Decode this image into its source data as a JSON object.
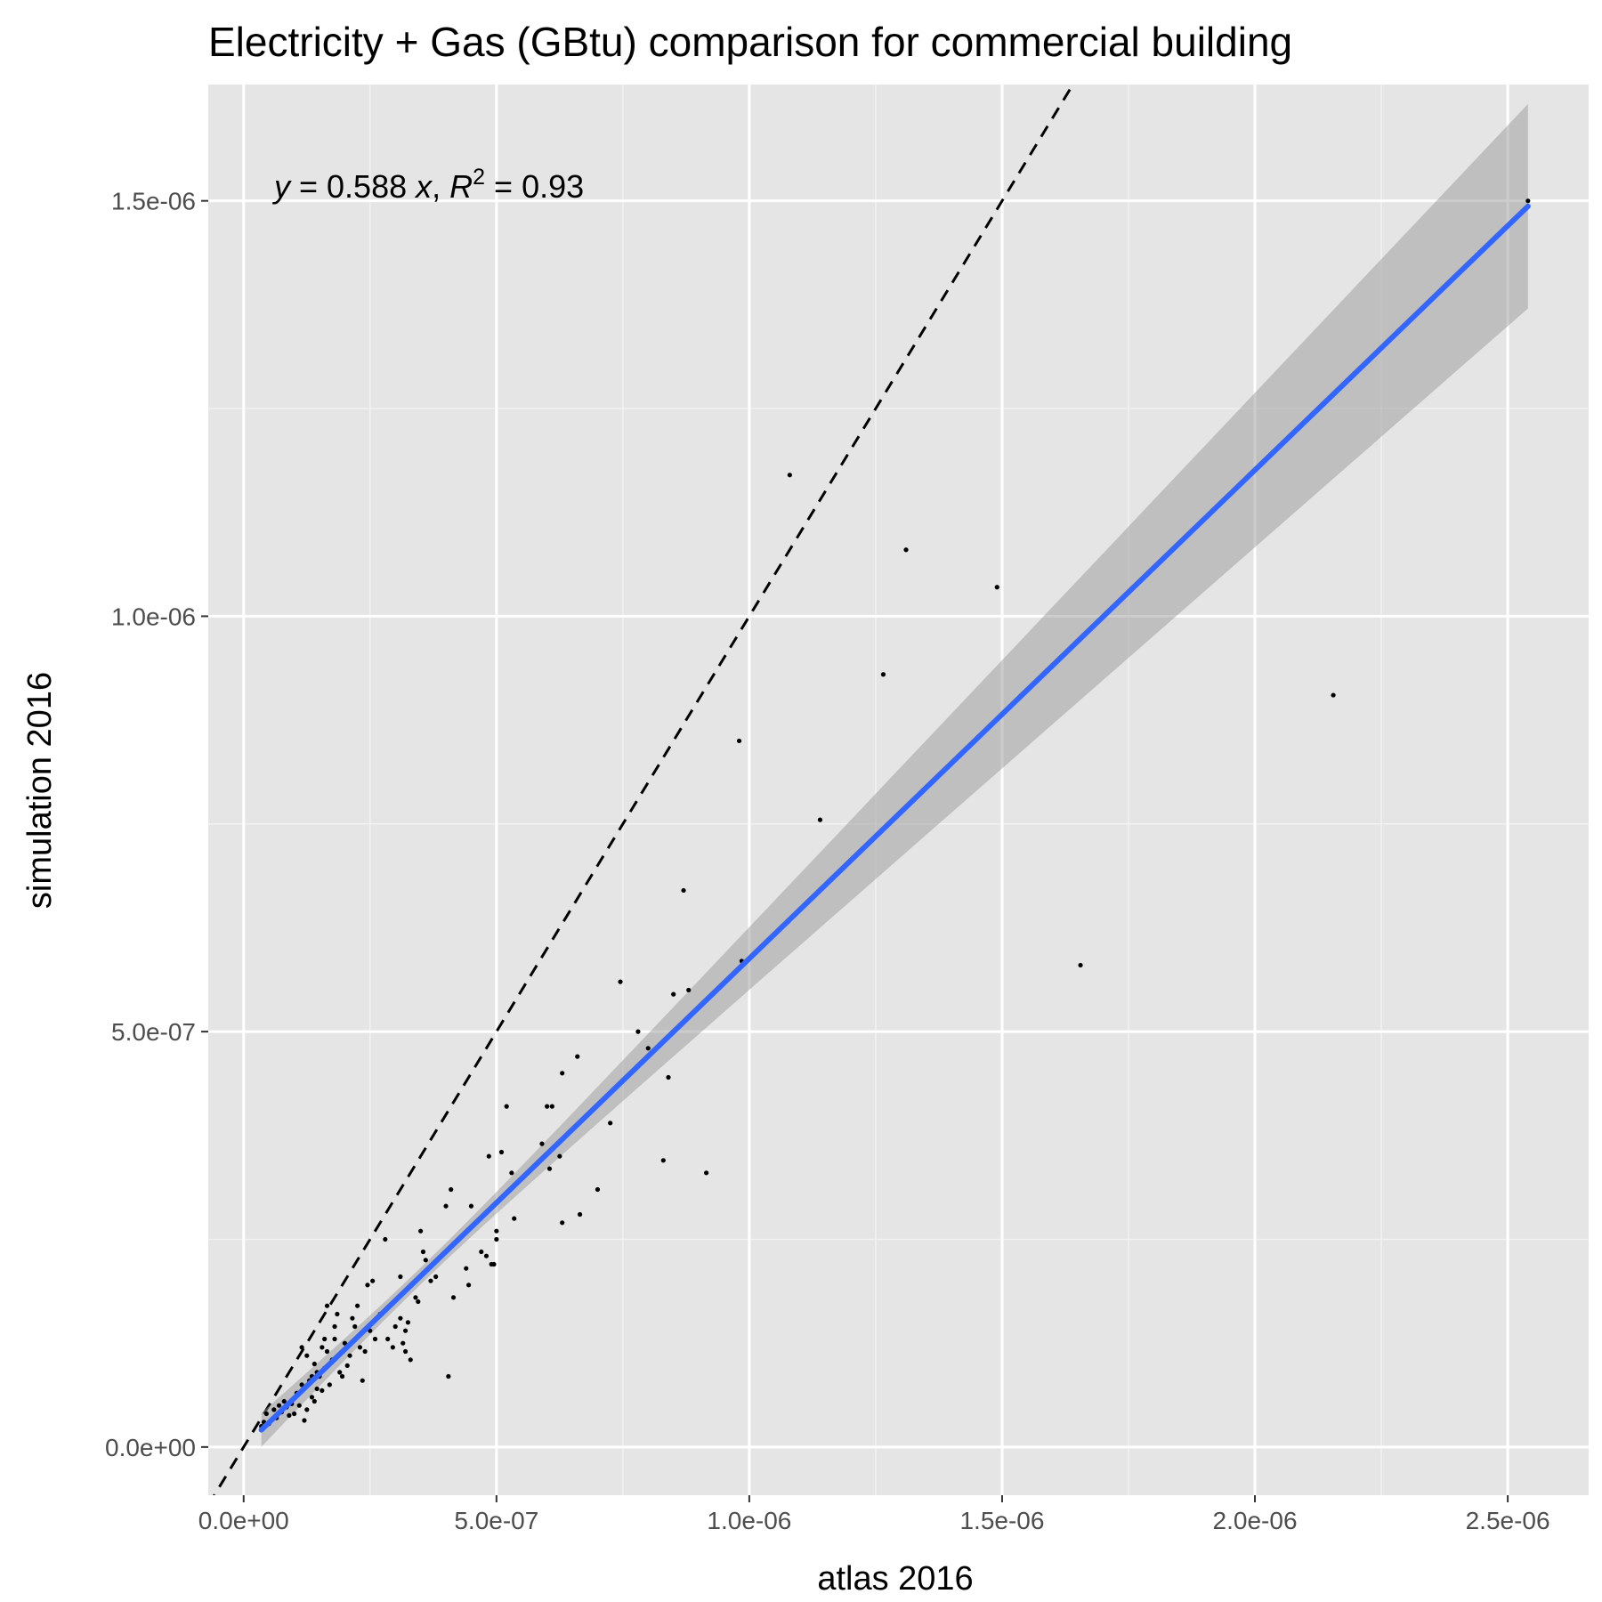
{
  "chart_data": {
    "type": "scatter",
    "title": "Electricity + Gas (GBtu) comparison for commercial building",
    "xlabel": "atlas 2016",
    "ylabel": "simulation 2016",
    "xlim": [
      -7e-08,
      2.66e-06
    ],
    "ylim": [
      -5.8e-08,
      1.64e-06
    ],
    "x_ticks": [
      0,
      5e-07,
      1e-06,
      1.5e-06,
      2e-06,
      2.5e-06
    ],
    "x_tick_labels": [
      "0.0e+00",
      "5.0e-07",
      "1.0e-06",
      "1.5e-06",
      "2.0e-06",
      "2.5e-06"
    ],
    "y_ticks": [
      0,
      5e-07,
      1e-06,
      1.5e-06
    ],
    "y_tick_labels": [
      "0.0e+00",
      "5.0e-07",
      "1.0e-06",
      "1.5e-06"
    ],
    "grid": true,
    "annotation": {
      "y_var": "y",
      "eq_mid": " = 0.588 ",
      "x_var": "x",
      "sep": ", ",
      "r_var": "R",
      "r_exp": "2",
      "r_val": " = 0.93"
    },
    "reference_line": {
      "slope": 1,
      "intercept": 0,
      "style": "dashed",
      "color": "#000000"
    },
    "fit_line": {
      "slope": 0.588,
      "intercept": 0,
      "x_range": [
        3.5e-08,
        2.54e-06
      ],
      "color": "#3366ff",
      "band_color": "#999999"
    },
    "points": [
      [
        3.5e-08,
        2.5e-08
      ],
      [
        4e-08,
        3e-08
      ],
      [
        4.5e-08,
        4e-08
      ],
      [
        5e-08,
        2.8e-08
      ],
      [
        6e-08,
        4.5e-08
      ],
      [
        6.5e-08,
        3.5e-08
      ],
      [
        7e-08,
        5e-08
      ],
      [
        7.5e-08,
        4.2e-08
      ],
      [
        8e-08,
        5.5e-08
      ],
      [
        8.5e-08,
        4.8e-08
      ],
      [
        9e-08,
        3.8e-08
      ],
      [
        9.5e-08,
        5.2e-08
      ],
      [
        1e-07,
        4e-08
      ],
      [
        1.05e-07,
        6.5e-08
      ],
      [
        1.1e-07,
        5e-08
      ],
      [
        1.15e-07,
        7.5e-08
      ],
      [
        1.2e-07,
        3.2e-08
      ],
      [
        1.25e-07,
        4.5e-08
      ],
      [
        1.3e-07,
        8e-08
      ],
      [
        1.35e-07,
        6e-08
      ],
      [
        1.4e-07,
        5.5e-08
      ],
      [
        1.45e-07,
        7e-08
      ],
      [
        1.5e-07,
        8.5e-08
      ],
      [
        1.55e-07,
        6.8e-08
      ],
      [
        1.6e-07,
        9.5e-08
      ],
      [
        1.65e-07,
        1.15e-07
      ],
      [
        1.7e-07,
        7.5e-08
      ],
      [
        1.75e-07,
        1.05e-07
      ],
      [
        1.8e-07,
        1.3e-07
      ],
      [
        1.9e-07,
        9e-08
      ],
      [
        2e-07,
        1.25e-07
      ],
      [
        2.1e-07,
        1.1e-07
      ],
      [
        2.2e-07,
        1.45e-07
      ],
      [
        2.3e-07,
        1.2e-07
      ],
      [
        2.4e-07,
        1.15e-07
      ],
      [
        2.5e-07,
        1.4e-07
      ],
      [
        2.6e-07,
        1.3e-07
      ],
      [
        2.7e-07,
        1.6e-07
      ],
      [
        1.25e-07,
        1.1e-07
      ],
      [
        1.35e-07,
        8.5e-08
      ],
      [
        1.55e-07,
        1.2e-07
      ],
      [
        1.6e-07,
        1.3e-07
      ],
      [
        1.85e-07,
        1.6e-07
      ],
      [
        2.05e-07,
        9.8e-08
      ],
      [
        2.25e-07,
        1.7e-07
      ],
      [
        2.45e-07,
        1.95e-07
      ],
      [
        2.55e-07,
        2e-07
      ],
      [
        1.95e-07,
        8.5e-08
      ],
      [
        2.35e-07,
        8e-08
      ],
      [
        1.15e-07,
        1.2e-07
      ],
      [
        1.4e-07,
        1e-07
      ],
      [
        1.65e-07,
        1.7e-07
      ],
      [
        1.8e-07,
        1.45e-07
      ],
      [
        2.15e-07,
        1.55e-07
      ],
      [
        1.45e-07,
        9e-08
      ],
      [
        2.85e-07,
        1.3e-07
      ],
      [
        2.95e-07,
        1.2e-07
      ],
      [
        3e-07,
        1.45e-07
      ],
      [
        3.1e-07,
        1.55e-07
      ],
      [
        3.1e-07,
        2.05e-07
      ],
      [
        3.15e-07,
        1.25e-07
      ],
      [
        3.2e-07,
        1.4e-07
      ],
      [
        3.25e-07,
        1.5e-07
      ],
      [
        3.3e-07,
        1.05e-07
      ],
      [
        3.4e-07,
        1.8e-07
      ],
      [
        3.45e-07,
        1.75e-07
      ],
      [
        3.5e-07,
        2.6e-07
      ],
      [
        3.55e-07,
        2.35e-07
      ],
      [
        3.6e-07,
        2.25e-07
      ],
      [
        3.7e-07,
        2e-07
      ],
      [
        3.8e-07,
        2.05e-07
      ],
      [
        2.8e-07,
        2.5e-07
      ],
      [
        3.2e-07,
        1.15e-07
      ],
      [
        4.05e-07,
        8.5e-08
      ],
      [
        4e-07,
        2.9e-07
      ],
      [
        4.1e-07,
        3.1e-07
      ],
      [
        4.15e-07,
        1.8e-07
      ],
      [
        4.4e-07,
        2.15e-07
      ],
      [
        4.45e-07,
        1.95e-07
      ],
      [
        4.5e-07,
        2.9e-07
      ],
      [
        4.7e-07,
        2.35e-07
      ],
      [
        4.8e-07,
        2.3e-07
      ],
      [
        4.85e-07,
        3.5e-07
      ],
      [
        4.9e-07,
        2.2e-07
      ],
      [
        4.95e-07,
        2.2e-07
      ],
      [
        5e-07,
        2.6e-07
      ],
      [
        5e-07,
        2.5e-07
      ],
      [
        5.1e-07,
        3.55e-07
      ],
      [
        5.2e-07,
        4.1e-07
      ],
      [
        5.3e-07,
        3.3e-07
      ],
      [
        5.35e-07,
        2.75e-07
      ],
      [
        5.9e-07,
        3.65e-07
      ],
      [
        6e-07,
        4.1e-07
      ],
      [
        6.1e-07,
        4.1e-07
      ],
      [
        6.05e-07,
        3.35e-07
      ],
      [
        6.25e-07,
        3.5e-07
      ],
      [
        6.3e-07,
        2.7e-07
      ],
      [
        6.3e-07,
        4.5e-07
      ],
      [
        6.6e-07,
        4.7e-07
      ],
      [
        6.65e-07,
        2.8e-07
      ],
      [
        7e-07,
        3.1e-07
      ],
      [
        7.25e-07,
        3.9e-07
      ],
      [
        7.45e-07,
        5.6e-07
      ],
      [
        7.8e-07,
        5e-07
      ],
      [
        8e-07,
        4.8e-07
      ],
      [
        8.3e-07,
        3.45e-07
      ],
      [
        8.4e-07,
        4.45e-07
      ],
      [
        8.5e-07,
        5.45e-07
      ],
      [
        8.7e-07,
        6.7e-07
      ],
      [
        8.8e-07,
        5.5e-07
      ],
      [
        9.15e-07,
        3.3e-07
      ],
      [
        9.8e-07,
        8.5e-07
      ],
      [
        9.85e-07,
        5.85e-07
      ],
      [
        1.08e-06,
        1.17e-06
      ],
      [
        1.14e-06,
        7.55e-07
      ],
      [
        1.265e-06,
        9.3e-07
      ],
      [
        1.31e-06,
        1.08e-06
      ],
      [
        1.49e-06,
        1.035e-06
      ],
      [
        1.655e-06,
        5.8e-07
      ],
      [
        2.155e-06,
        9.05e-07
      ],
      [
        2.54e-06,
        1.5e-06
      ]
    ]
  }
}
